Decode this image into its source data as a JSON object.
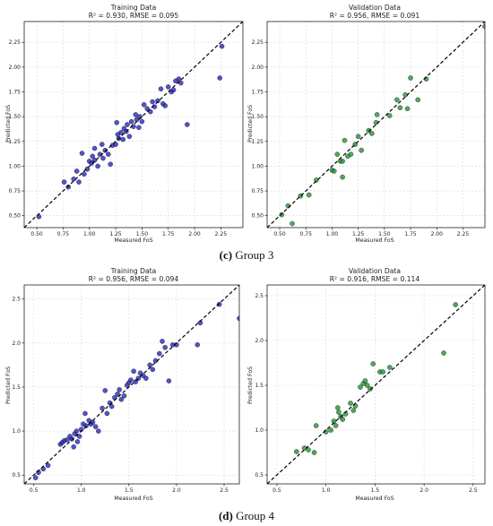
{
  "captions": [
    {
      "label": "(c)",
      "text": "Group 3"
    },
    {
      "label": "(d)",
      "text": "Group 4"
    }
  ],
  "style": {
    "training_color": "#2222bb",
    "validation_color": "#1f8f2f",
    "diagonal_color": "#000000",
    "grid_color": "#d8d8d8"
  },
  "chart_data": [
    {
      "type": "scatter",
      "title": "Training Data",
      "subtitle": "R² = 0.930, RMSE = 0.095",
      "xlabel": "Measured FoS",
      "ylabel": "Predicted FoS",
      "xlim": [
        0.38,
        2.46
      ],
      "ylim": [
        0.38,
        2.46
      ],
      "ticks": [
        "0.50",
        "0.75",
        "1.00",
        "1.25",
        "1.50",
        "1.75",
        "2.00",
        "2.25"
      ],
      "grid": true,
      "reference_line": "y = x",
      "color_key": "training_color",
      "points": [
        [
          0.52,
          0.49
        ],
        [
          0.76,
          0.84
        ],
        [
          0.8,
          0.79
        ],
        [
          0.85,
          0.87
        ],
        [
          0.88,
          0.95
        ],
        [
          0.9,
          0.84
        ],
        [
          0.93,
          1.13
        ],
        [
          0.95,
          0.92
        ],
        [
          0.98,
          0.97
        ],
        [
          1.0,
          1.05
        ],
        [
          1.02,
          1.03
        ],
        [
          1.03,
          1.1
        ],
        [
          1.05,
          1.06
        ],
        [
          1.05,
          1.18
        ],
        [
          1.08,
          1.0
        ],
        [
          1.1,
          1.12
        ],
        [
          1.12,
          1.22
        ],
        [
          1.13,
          1.08
        ],
        [
          1.15,
          1.16
        ],
        [
          1.18,
          1.12
        ],
        [
          1.2,
          1.02
        ],
        [
          1.22,
          1.21
        ],
        [
          1.25,
          1.22
        ],
        [
          1.26,
          1.44
        ],
        [
          1.27,
          1.32
        ],
        [
          1.28,
          1.28
        ],
        [
          1.3,
          1.34
        ],
        [
          1.32,
          1.27
        ],
        [
          1.33,
          1.38
        ],
        [
          1.35,
          1.35
        ],
        [
          1.36,
          1.42
        ],
        [
          1.38,
          1.3
        ],
        [
          1.4,
          1.45
        ],
        [
          1.42,
          1.4
        ],
        [
          1.44,
          1.52
        ],
        [
          1.45,
          1.47
        ],
        [
          1.47,
          1.39
        ],
        [
          1.48,
          1.5
        ],
        [
          1.5,
          1.45
        ],
        [
          1.52,
          1.62
        ],
        [
          1.55,
          1.58
        ],
        [
          1.58,
          1.55
        ],
        [
          1.6,
          1.65
        ],
        [
          1.62,
          1.6
        ],
        [
          1.65,
          1.66
        ],
        [
          1.68,
          1.78
        ],
        [
          1.7,
          1.63
        ],
        [
          1.72,
          1.61
        ],
        [
          1.75,
          1.8
        ],
        [
          1.78,
          1.75
        ],
        [
          1.8,
          1.77
        ],
        [
          1.82,
          1.86
        ],
        [
          1.85,
          1.88
        ],
        [
          1.87,
          1.84
        ],
        [
          1.93,
          1.42
        ],
        [
          2.24,
          1.89
        ],
        [
          2.26,
          2.21
        ]
      ]
    },
    {
      "type": "scatter",
      "title": "Validation Data",
      "subtitle": "R² = 0.956, RMSE = 0.091",
      "xlabel": "Measured FoS",
      "ylabel": "Predicted FoS",
      "xlim": [
        0.38,
        2.46
      ],
      "ylim": [
        0.38,
        2.46
      ],
      "ticks": [
        "0.50",
        "0.75",
        "1.00",
        "1.25",
        "1.50",
        "1.75",
        "2.00",
        "2.25"
      ],
      "grid": true,
      "reference_line": "y = x",
      "color_key": "validation_color",
      "points": [
        [
          0.52,
          0.51
        ],
        [
          0.58,
          0.6
        ],
        [
          0.62,
          0.42
        ],
        [
          0.7,
          0.7
        ],
        [
          0.78,
          0.71
        ],
        [
          0.85,
          0.86
        ],
        [
          1.0,
          0.96
        ],
        [
          1.02,
          0.95
        ],
        [
          1.05,
          1.12
        ],
        [
          1.08,
          1.05
        ],
        [
          1.1,
          1.05
        ],
        [
          1.1,
          0.89
        ],
        [
          1.12,
          1.26
        ],
        [
          1.15,
          1.1
        ],
        [
          1.18,
          1.12
        ],
        [
          1.22,
          1.22
        ],
        [
          1.25,
          1.3
        ],
        [
          1.28,
          1.16
        ],
        [
          1.35,
          1.36
        ],
        [
          1.38,
          1.33
        ],
        [
          1.42,
          1.44
        ],
        [
          1.43,
          1.52
        ],
        [
          1.55,
          1.51
        ],
        [
          1.62,
          1.67
        ],
        [
          1.65,
          1.59
        ],
        [
          1.7,
          1.72
        ],
        [
          1.72,
          1.58
        ],
        [
          1.75,
          1.89
        ],
        [
          1.82,
          1.67
        ],
        [
          1.9,
          1.88
        ],
        [
          2.46,
          2.41
        ]
      ]
    },
    {
      "type": "scatter",
      "title": "Training Data",
      "subtitle": "R² = 0.956, RMSE = 0.094",
      "xlabel": "Measured FoS",
      "ylabel": "Predicted FoS",
      "xlim": [
        0.4,
        2.66
      ],
      "ylim": [
        0.4,
        2.66
      ],
      "ticks": [
        "0.5",
        "1.0",
        "1.5",
        "2.0",
        "2.5"
      ],
      "grid": true,
      "reference_line": "y = x",
      "color_key": "training_color",
      "points": [
        [
          0.52,
          0.47
        ],
        [
          0.55,
          0.53
        ],
        [
          0.6,
          0.57
        ],
        [
          0.65,
          0.61
        ],
        [
          0.78,
          0.85
        ],
        [
          0.8,
          0.87
        ],
        [
          0.82,
          0.89
        ],
        [
          0.85,
          0.9
        ],
        [
          0.88,
          0.94
        ],
        [
          0.9,
          0.91
        ],
        [
          0.92,
          0.82
        ],
        [
          0.93,
          0.97
        ],
        [
          0.95,
          1.0
        ],
        [
          0.96,
          0.88
        ],
        [
          0.98,
          0.94
        ],
        [
          1.0,
          1.02
        ],
        [
          1.02,
          1.08
        ],
        [
          1.04,
          1.2
        ],
        [
          1.05,
          1.06
        ],
        [
          1.08,
          1.12
        ],
        [
          1.1,
          1.08
        ],
        [
          1.12,
          1.1
        ],
        [
          1.15,
          1.05
        ],
        [
          1.18,
          1.0
        ],
        [
          1.22,
          1.26
        ],
        [
          1.25,
          1.46
        ],
        [
          1.27,
          1.2
        ],
        [
          1.3,
          1.32
        ],
        [
          1.32,
          1.28
        ],
        [
          1.35,
          1.38
        ],
        [
          1.38,
          1.42
        ],
        [
          1.4,
          1.47
        ],
        [
          1.42,
          1.36
        ],
        [
          1.45,
          1.4
        ],
        [
          1.48,
          1.52
        ],
        [
          1.5,
          1.55
        ],
        [
          1.52,
          1.58
        ],
        [
          1.55,
          1.68
        ],
        [
          1.57,
          1.56
        ],
        [
          1.6,
          1.6
        ],
        [
          1.62,
          1.66
        ],
        [
          1.65,
          1.63
        ],
        [
          1.68,
          1.6
        ],
        [
          1.72,
          1.75
        ],
        [
          1.75,
          1.7
        ],
        [
          1.78,
          1.8
        ],
        [
          1.82,
          1.88
        ],
        [
          1.85,
          2.02
        ],
        [
          1.88,
          1.95
        ],
        [
          1.92,
          1.57
        ],
        [
          1.96,
          1.98
        ],
        [
          2.0,
          1.98
        ],
        [
          2.22,
          1.98
        ],
        [
          2.25,
          2.23
        ],
        [
          2.45,
          2.44
        ],
        [
          2.66,
          2.28
        ]
      ]
    },
    {
      "type": "scatter",
      "title": "Validation Data",
      "subtitle": "R² = 0.916, RMSE = 0.114",
      "xlabel": "Measured FoS",
      "ylabel": "Predicted FoS",
      "xlim": [
        0.4,
        2.62
      ],
      "ylim": [
        0.4,
        2.62
      ],
      "ticks": [
        "0.5",
        "1.0",
        "1.5",
        "2.0",
        "2.5"
      ],
      "grid": true,
      "reference_line": "y = x",
      "color_key": "validation_color",
      "points": [
        [
          0.7,
          0.76
        ],
        [
          0.78,
          0.8
        ],
        [
          0.82,
          0.78
        ],
        [
          0.88,
          0.75
        ],
        [
          0.9,
          1.05
        ],
        [
          1.0,
          0.98
        ],
        [
          1.05,
          1.0
        ],
        [
          1.08,
          1.1
        ],
        [
          1.1,
          1.05
        ],
        [
          1.12,
          1.25
        ],
        [
          1.13,
          1.2
        ],
        [
          1.15,
          1.15
        ],
        [
          1.17,
          1.12
        ],
        [
          1.2,
          1.18
        ],
        [
          1.25,
          1.3
        ],
        [
          1.28,
          1.22
        ],
        [
          1.3,
          1.27
        ],
        [
          1.35,
          1.48
        ],
        [
          1.38,
          1.52
        ],
        [
          1.4,
          1.55
        ],
        [
          1.42,
          1.5
        ],
        [
          1.45,
          1.46
        ],
        [
          1.48,
          1.74
        ],
        [
          1.55,
          1.65
        ],
        [
          1.58,
          1.65
        ],
        [
          1.65,
          1.7
        ],
        [
          2.2,
          1.86
        ],
        [
          2.32,
          2.4
        ]
      ]
    }
  ]
}
